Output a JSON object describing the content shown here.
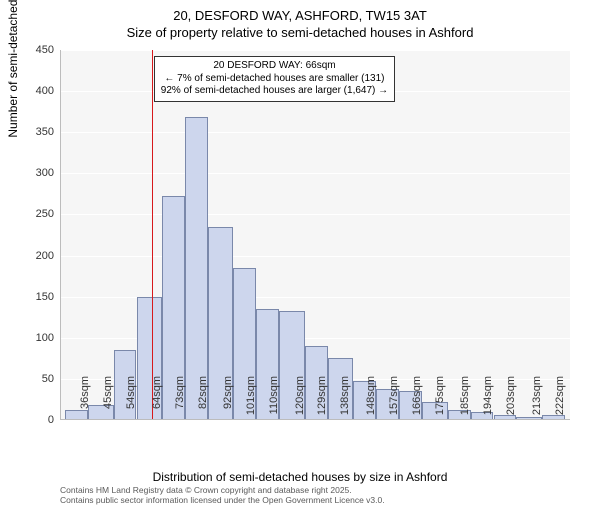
{
  "title_line1": "20, DESFORD WAY, ASHFORD, TW15 3AT",
  "title_line2": "Size of property relative to semi-detached houses in Ashford",
  "chart": {
    "type": "histogram",
    "background_color": "#f6f6f6",
    "grid_color": "#ffffff",
    "bar_fill": "#cdd6ed",
    "bar_stroke": "#7a88aa",
    "ref_line_color": "#d7191c",
    "ref_line_x": 66,
    "xlim": [
      30,
      230
    ],
    "ylim": [
      0,
      450
    ],
    "ytick_step": 50,
    "bins": [
      {
        "x": 32,
        "w": 9,
        "count": 12
      },
      {
        "x": 41,
        "w": 10,
        "count": 18
      },
      {
        "x": 51,
        "w": 9,
        "count": 85
      },
      {
        "x": 60,
        "w": 10,
        "count": 150
      },
      {
        "x": 70,
        "w": 9,
        "count": 272
      },
      {
        "x": 79,
        "w": 9,
        "count": 368
      },
      {
        "x": 88,
        "w": 10,
        "count": 235
      },
      {
        "x": 98,
        "w": 9,
        "count": 185
      },
      {
        "x": 107,
        "w": 9,
        "count": 135
      },
      {
        "x": 116,
        "w": 10,
        "count": 132
      },
      {
        "x": 126,
        "w": 9,
        "count": 90
      },
      {
        "x": 135,
        "w": 10,
        "count": 75
      },
      {
        "x": 145,
        "w": 9,
        "count": 48
      },
      {
        "x": 154,
        "w": 9,
        "count": 38
      },
      {
        "x": 163,
        "w": 9,
        "count": 35
      },
      {
        "x": 172,
        "w": 10,
        "count": 22
      },
      {
        "x": 182,
        "w": 9,
        "count": 12
      },
      {
        "x": 191,
        "w": 9,
        "count": 10
      },
      {
        "x": 200,
        "w": 9,
        "count": 6
      },
      {
        "x": 209,
        "w": 10,
        "count": 4
      },
      {
        "x": 219,
        "w": 9,
        "count": 6
      }
    ],
    "xtick_labels": [
      "36sqm",
      "45sqm",
      "54sqm",
      "64sqm",
      "73sqm",
      "82sqm",
      "92sqm",
      "101sqm",
      "110sqm",
      "120sqm",
      "129sqm",
      "138sqm",
      "148sqm",
      "157sqm",
      "166sqm",
      "175sqm",
      "185sqm",
      "194sqm",
      "203sqm",
      "213sqm",
      "222sqm"
    ],
    "xtick_positions": [
      36,
      45,
      54,
      64,
      73,
      82,
      92,
      101,
      110,
      120,
      129,
      138,
      148,
      157,
      166,
      175,
      185,
      194,
      203,
      213,
      222
    ],
    "xlabel": "Distribution of semi-detached houses by size in Ashford",
    "ylabel": "Number of semi-detached properties",
    "annotation": {
      "line1": "20 DESFORD WAY: 66sqm",
      "line2": "← 7% of semi-detached houses are smaller (131)",
      "line3": "92% of semi-detached houses are larger (1,647) →"
    },
    "title_fontsize": 13,
    "label_fontsize": 12,
    "tick_fontsize": 11,
    "annot_fontsize": 10
  },
  "footer_line1": "Contains HM Land Registry data © Crown copyright and database right 2025.",
  "footer_line2": "Contains public sector information licensed under the Open Government Licence v3.0."
}
